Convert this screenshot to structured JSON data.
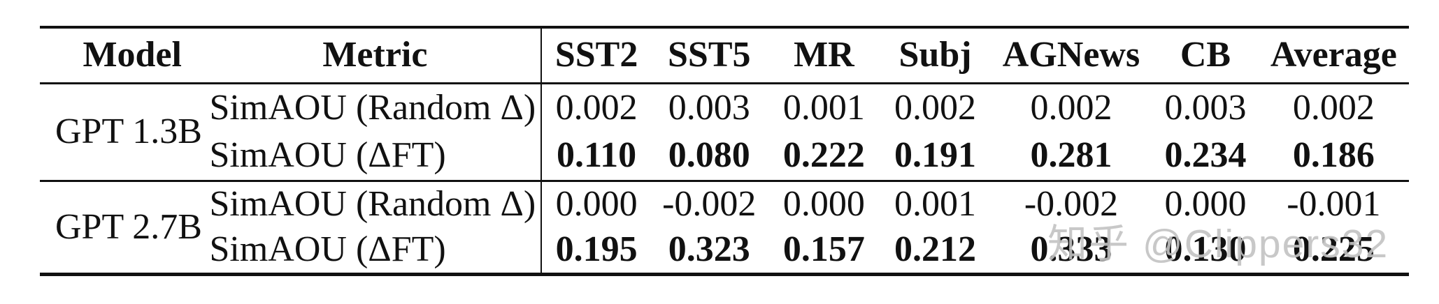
{
  "table": {
    "columns": [
      "Model",
      "Metric",
      "SST2",
      "SST5",
      "MR",
      "Subj",
      "AGNews",
      "CB",
      "Average"
    ],
    "groups": [
      {
        "model": "GPT 1.3B",
        "rows": [
          {
            "metric": "SimAOU (Random Δ)",
            "bold": false,
            "values": [
              "0.002",
              "0.003",
              "0.001",
              "0.002",
              "0.002",
              "0.003",
              "0.002"
            ]
          },
          {
            "metric": "SimAOU (ΔFT)",
            "bold": true,
            "values": [
              "0.110",
              "0.080",
              "0.222",
              "0.191",
              "0.281",
              "0.234",
              "0.186"
            ]
          }
        ]
      },
      {
        "model": "GPT 2.7B",
        "rows": [
          {
            "metric": "SimAOU (Random Δ)",
            "bold": false,
            "values": [
              "0.000",
              "-0.002",
              "0.000",
              "0.001",
              "-0.002",
              "0.000",
              "-0.001"
            ]
          },
          {
            "metric": "SimAOU (ΔFT)",
            "bold": true,
            "values": [
              "0.195",
              "0.323",
              "0.157",
              "0.212",
              "0.333",
              "0.130",
              "0.225"
            ]
          }
        ]
      }
    ]
  },
  "watermark": {
    "text": "知乎 @Clippers32",
    "color": "#c3c3c3"
  }
}
